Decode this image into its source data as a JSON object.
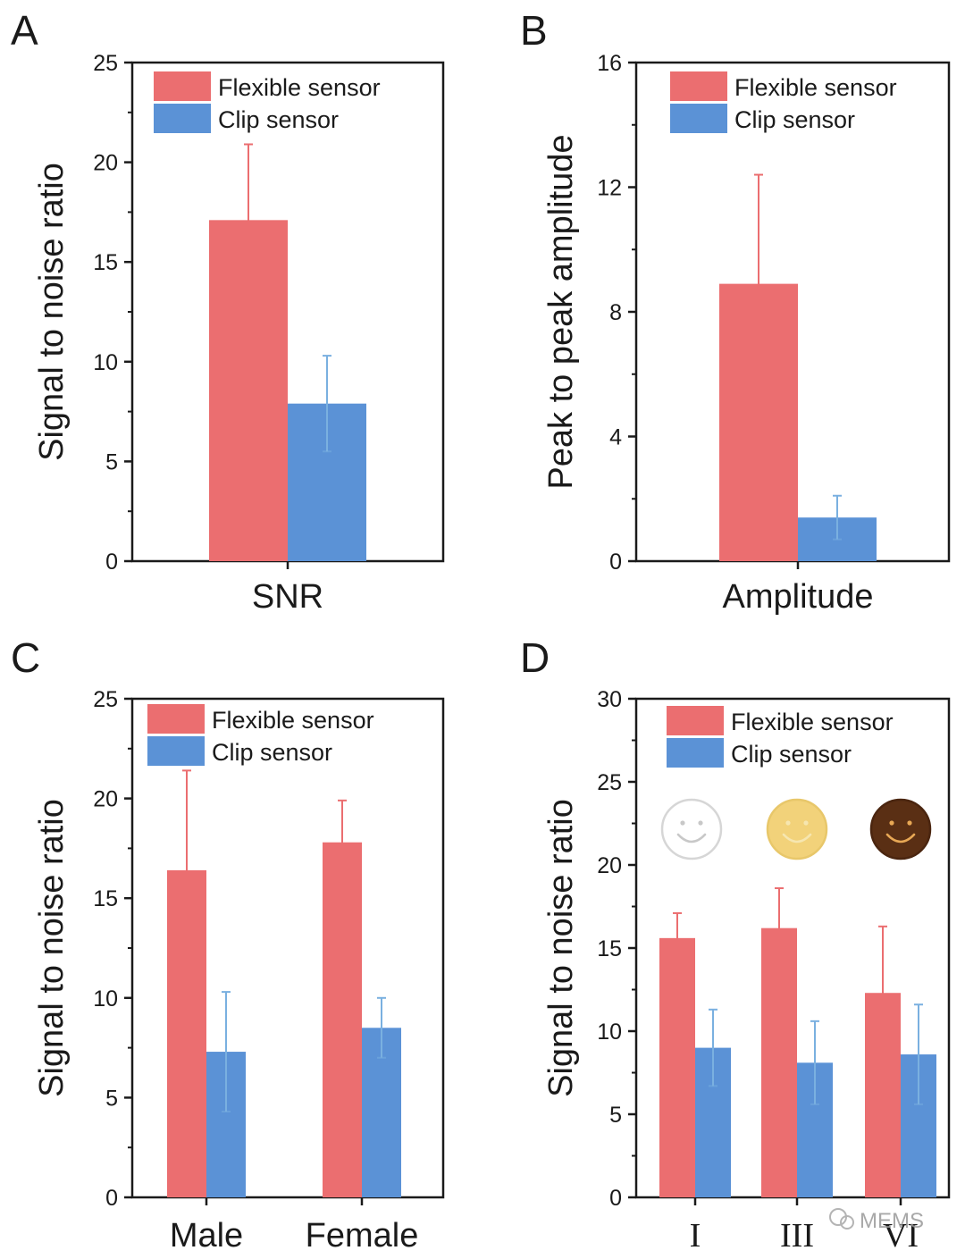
{
  "colors": {
    "flexible": "#eb6e70",
    "clip": "#5b92d6",
    "flexible_err": "#eb6e70",
    "clip_err": "#7ab0e0",
    "axis": "#1a1a1a"
  },
  "legend": {
    "flexible_label": "Flexible sensor",
    "clip_label": "Clip sensor"
  },
  "watermark": "MEMS",
  "chart_data": [
    {
      "panel": "A",
      "type": "bar",
      "title": "",
      "xlabel": "",
      "ylabel": "Signal to noise ratio",
      "ylim": [
        0,
        25
      ],
      "yticks": [
        0,
        5,
        10,
        15,
        20,
        25
      ],
      "categories": [
        "SNR"
      ],
      "series": [
        {
          "name": "Flexible sensor",
          "values": [
            17.1
          ],
          "errors": [
            3.8
          ]
        },
        {
          "name": "Clip sensor",
          "values": [
            7.9
          ],
          "errors": [
            2.4
          ]
        }
      ],
      "legend_position": "top-left"
    },
    {
      "panel": "B",
      "type": "bar",
      "title": "",
      "xlabel": "",
      "ylabel": "Peak to peak amplitude",
      "ylim": [
        0,
        16
      ],
      "yticks": [
        0,
        4,
        8,
        12,
        16
      ],
      "categories": [
        "Amplitude"
      ],
      "series": [
        {
          "name": "Flexible sensor",
          "values": [
            8.9
          ],
          "errors": [
            3.5
          ]
        },
        {
          "name": "Clip sensor",
          "values": [
            1.4
          ],
          "errors": [
            0.7
          ]
        }
      ],
      "legend_position": "top-left"
    },
    {
      "panel": "C",
      "type": "bar",
      "title": "",
      "xlabel": "",
      "ylabel": "Signal to noise ratio",
      "ylim": [
        0,
        25
      ],
      "yticks": [
        0,
        5,
        10,
        15,
        20,
        25
      ],
      "categories": [
        "Male",
        "Female"
      ],
      "series": [
        {
          "name": "Flexible sensor",
          "values": [
            16.4,
            17.8
          ],
          "errors": [
            5.0,
            2.1
          ]
        },
        {
          "name": "Clip sensor",
          "values": [
            7.3,
            8.5
          ],
          "errors": [
            3.0,
            1.5
          ]
        }
      ],
      "legend_position": "top-left"
    },
    {
      "panel": "D",
      "type": "bar",
      "title": "",
      "xlabel": "",
      "ylabel": "Signal to noise ratio",
      "ylim": [
        0,
        30
      ],
      "yticks": [
        0,
        5,
        10,
        15,
        20,
        25,
        30
      ],
      "categories": [
        "I",
        "III",
        "VI"
      ],
      "series": [
        {
          "name": "Flexible sensor",
          "values": [
            15.6,
            16.2,
            12.3
          ],
          "errors": [
            1.5,
            2.4,
            4.0
          ]
        },
        {
          "name": "Clip sensor",
          "values": [
            9.0,
            8.1,
            8.6
          ],
          "errors": [
            2.3,
            2.5,
            3.0
          ]
        }
      ],
      "face_icons": [
        {
          "name": "white-smiley-icon",
          "fill": "#ffffff",
          "stroke": "#d6d6d6",
          "line": "#c8c8c8"
        },
        {
          "name": "yellow-smiley-icon",
          "fill": "#f2d27a",
          "stroke": "#e8c76a",
          "line": "#f6e6b0"
        },
        {
          "name": "brown-smiley-icon",
          "fill": "#5a2f14",
          "stroke": "#4a250f",
          "line": "#e8a855"
        }
      ],
      "legend_position": "top-left"
    }
  ]
}
